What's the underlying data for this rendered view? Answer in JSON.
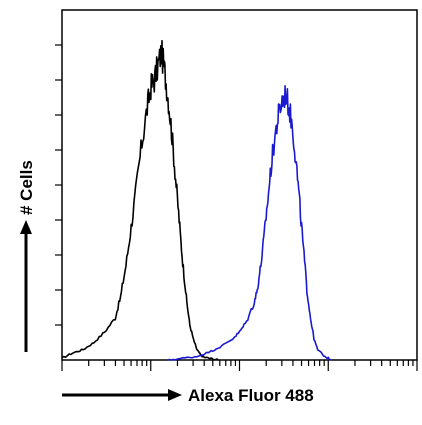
{
  "chart_data": {
    "type": "line",
    "title": "",
    "xlabel": "Alexa Fluor 488",
    "ylabel": "# Cells",
    "x_scale": "log",
    "xlim": [
      0,
      1
    ],
    "ylim": [
      0,
      1
    ],
    "grid": false,
    "legend": "none",
    "series": [
      {
        "color": "#000000",
        "x": [
          0.0,
          0.03,
          0.06,
          0.09,
          0.12,
          0.15,
          0.165,
          0.18,
          0.195,
          0.21,
          0.225,
          0.24,
          0.25,
          0.26,
          0.27,
          0.28,
          0.29,
          0.3,
          0.31,
          0.32,
          0.33,
          0.34,
          0.35,
          0.36,
          0.37,
          0.38,
          0.39,
          0.4,
          0.42,
          0.44
        ],
        "y": [
          0.005,
          0.02,
          0.03,
          0.05,
          0.08,
          0.12,
          0.18,
          0.27,
          0.38,
          0.5,
          0.62,
          0.72,
          0.78,
          0.8,
          0.84,
          0.88,
          0.82,
          0.74,
          0.64,
          0.52,
          0.4,
          0.28,
          0.18,
          0.1,
          0.06,
          0.03,
          0.015,
          0.008,
          0.004,
          0.0
        ]
      },
      {
        "color": "#1a1ad0",
        "x": [
          0.3,
          0.34,
          0.38,
          0.42,
          0.45,
          0.48,
          0.5,
          0.52,
          0.54,
          0.55,
          0.56,
          0.57,
          0.58,
          0.59,
          0.6,
          0.61,
          0.62,
          0.63,
          0.64,
          0.65,
          0.66,
          0.67,
          0.68,
          0.69,
          0.7,
          0.71,
          0.72,
          0.74,
          0.76
        ],
        "y": [
          0.0,
          0.005,
          0.01,
          0.025,
          0.04,
          0.06,
          0.08,
          0.11,
          0.16,
          0.2,
          0.27,
          0.36,
          0.46,
          0.56,
          0.64,
          0.7,
          0.74,
          0.76,
          0.72,
          0.66,
          0.56,
          0.44,
          0.32,
          0.2,
          0.12,
          0.06,
          0.03,
          0.01,
          0.0
        ]
      }
    ]
  }
}
